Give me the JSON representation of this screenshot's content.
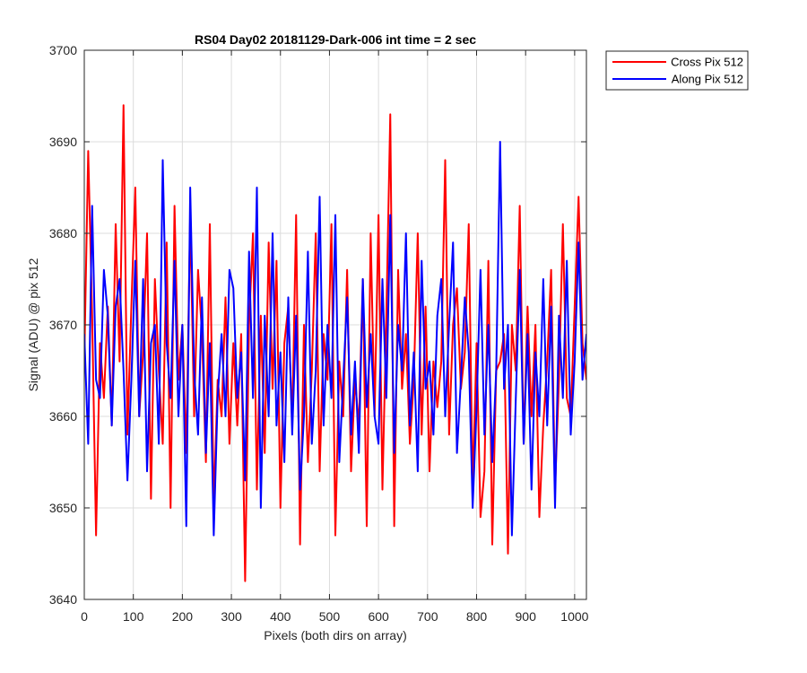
{
  "chart_data": {
    "type": "line",
    "title": "RS04 Day02 20181129-Dark-006 int time = 2 sec",
    "xlabel": "Pixels (both dirs on array)",
    "ylabel": "Signal (ADU) @ pix 512",
    "xlim": [
      0,
      1024
    ],
    "ylim": [
      3640,
      3700
    ],
    "xticks": [
      0,
      100,
      200,
      300,
      400,
      500,
      600,
      700,
      800,
      900,
      1000
    ],
    "yticks": [
      3640,
      3650,
      3660,
      3670,
      3680,
      3690,
      3700
    ],
    "grid": true,
    "legend_position": "outside-top-right",
    "series_note_x": "series values are sampled every 8 pixels from x = 0 to x = 1024",
    "series": [
      {
        "name": "Cross Pix 512",
        "color": "#ff0000",
        "x_start": 0,
        "x_step": 8,
        "values": [
          3666,
          3689,
          3671,
          3647,
          3668,
          3662,
          3672,
          3659,
          3681,
          3666,
          3694,
          3658,
          3672,
          3685,
          3660,
          3667,
          3680,
          3651,
          3675,
          3665,
          3657,
          3679,
          3650,
          3683,
          3664,
          3670,
          3656,
          3682,
          3660,
          3676,
          3669,
          3655,
          3681,
          3650,
          3664,
          3660,
          3673,
          3657,
          3668,
          3659,
          3669,
          3642,
          3670,
          3680,
          3652,
          3671,
          3656,
          3679,
          3663,
          3677,
          3650,
          3668,
          3672,
          3659,
          3682,
          3646,
          3670,
          3655,
          3665,
          3680,
          3654,
          3669,
          3664,
          3681,
          3647,
          3666,
          3660,
          3676,
          3654,
          3664,
          3659,
          3675,
          3648,
          3680,
          3660,
          3682,
          3652,
          3671,
          3693,
          3648,
          3676,
          3663,
          3669,
          3657,
          3664,
          3680,
          3658,
          3672,
          3654,
          3666,
          3661,
          3666,
          3688,
          3658,
          3670,
          3674,
          3663,
          3667,
          3681,
          3652,
          3668,
          3649,
          3654,
          3677,
          3646,
          3665,
          3666,
          3669,
          3645,
          3670,
          3665,
          3683,
          3657,
          3672,
          3660,
          3670,
          3649,
          3659,
          3666,
          3676,
          3652,
          3664,
          3681,
          3662,
          3660,
          3672,
          3684,
          3668,
          3664
        ]
      },
      {
        "name": "Along Pix 512",
        "color": "#0000ff",
        "x_start": 0,
        "x_step": 8,
        "values": [
          3669,
          3657,
          3683,
          3664,
          3662,
          3676,
          3671,
          3659,
          3672,
          3675,
          3665,
          3653,
          3664,
          3677,
          3660,
          3675,
          3654,
          3668,
          3670,
          3657,
          3688,
          3668,
          3662,
          3677,
          3660,
          3670,
          3648,
          3685,
          3665,
          3658,
          3673,
          3656,
          3668,
          3647,
          3662,
          3669,
          3660,
          3676,
          3674,
          3662,
          3667,
          3653,
          3678,
          3662,
          3685,
          3650,
          3671,
          3660,
          3680,
          3659,
          3667,
          3655,
          3673,
          3658,
          3671,
          3652,
          3660,
          3678,
          3657,
          3665,
          3684,
          3659,
          3670,
          3662,
          3682,
          3655,
          3664,
          3673,
          3658,
          3666,
          3656,
          3675,
          3661,
          3669,
          3660,
          3657,
          3675,
          3662,
          3682,
          3656,
          3670,
          3665,
          3680,
          3659,
          3667,
          3654,
          3677,
          3663,
          3666,
          3658,
          3671,
          3675,
          3660,
          3670,
          3679,
          3656,
          3664,
          3673,
          3667,
          3650,
          3661,
          3676,
          3658,
          3670,
          3655,
          3665,
          3690,
          3663,
          3670,
          3647,
          3662,
          3676,
          3657,
          3669,
          3652,
          3667,
          3660,
          3675,
          3659,
          3672,
          3650,
          3671,
          3662,
          3677,
          3658,
          3666,
          3679,
          3664,
          3669
        ]
      }
    ]
  }
}
